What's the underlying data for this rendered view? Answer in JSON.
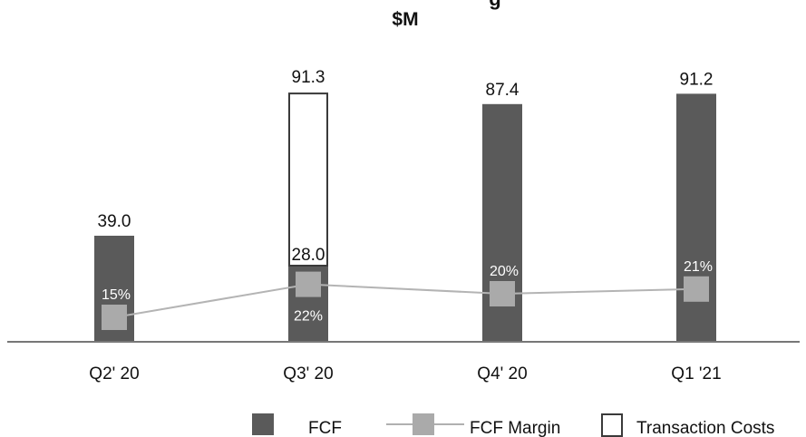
{
  "chart_data": {
    "type": "bar",
    "title_partial": "g",
    "subtitle": "$M",
    "categories": [
      "Q2' 20",
      "Q3' 20",
      "Q4' 20",
      "Q1 '21"
    ],
    "series": [
      {
        "name": "FCF",
        "kind": "bar",
        "values": [
          39.0,
          28.0,
          87.4,
          91.2
        ],
        "labels": [
          "39.0",
          "28.0",
          "87.4",
          "91.2"
        ],
        "color": "#5a5a5a"
      },
      {
        "name": "Transaction Costs",
        "kind": "bar-stacked-outline",
        "values": [
          null,
          63.3,
          null,
          null
        ],
        "total_labels": [
          "",
          "91.3",
          "",
          ""
        ],
        "color": "#ffffff",
        "stroke": "#3a3a3a"
      },
      {
        "name": "FCF Margin",
        "kind": "line",
        "values": [
          15,
          22,
          20,
          21
        ],
        "labels": [
          "15%",
          "22%",
          "20%",
          "21%"
        ],
        "color": "#aaaaaa"
      }
    ],
    "ylim": [
      0,
      100
    ],
    "legend": [
      "FCF",
      "FCF Margin",
      "Transaction Costs"
    ],
    "legend_position": "bottom-right"
  }
}
